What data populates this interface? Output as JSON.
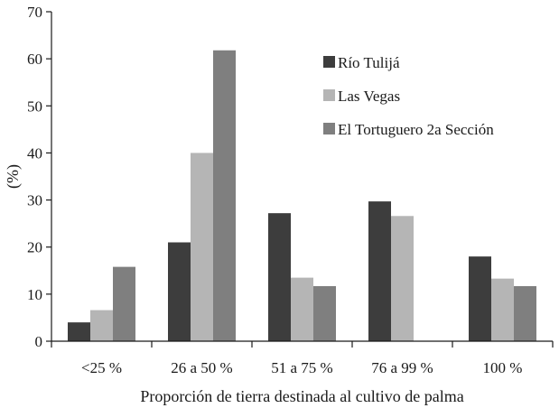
{
  "chart_data": {
    "type": "bar",
    "title": "",
    "xlabel": "Proporción de tierra destinada al cultivo de palma",
    "ylabel": "(%)",
    "ylim": [
      0,
      70
    ],
    "yticks": [
      0,
      10,
      20,
      30,
      40,
      50,
      60,
      70
    ],
    "grid": false,
    "legend_position": "top-right",
    "categories": [
      "<25 %",
      "26 a 50 %",
      "51 a 75 %",
      "76 a 99 %",
      "100 %"
    ],
    "series": [
      {
        "name": "Río Tulijá",
        "color": "#3d3d3d",
        "values": [
          4,
          21,
          27.2,
          29.7,
          18
        ]
      },
      {
        "name": "Las Vegas",
        "color": "#b5b5b5",
        "values": [
          6.6,
          40,
          13.5,
          26.6,
          13.3
        ]
      },
      {
        "name": "El Tortuguero 2a Sección",
        "color": "#7f7f7f",
        "values": [
          15.8,
          61.8,
          11.7,
          0,
          11.7
        ]
      }
    ]
  }
}
